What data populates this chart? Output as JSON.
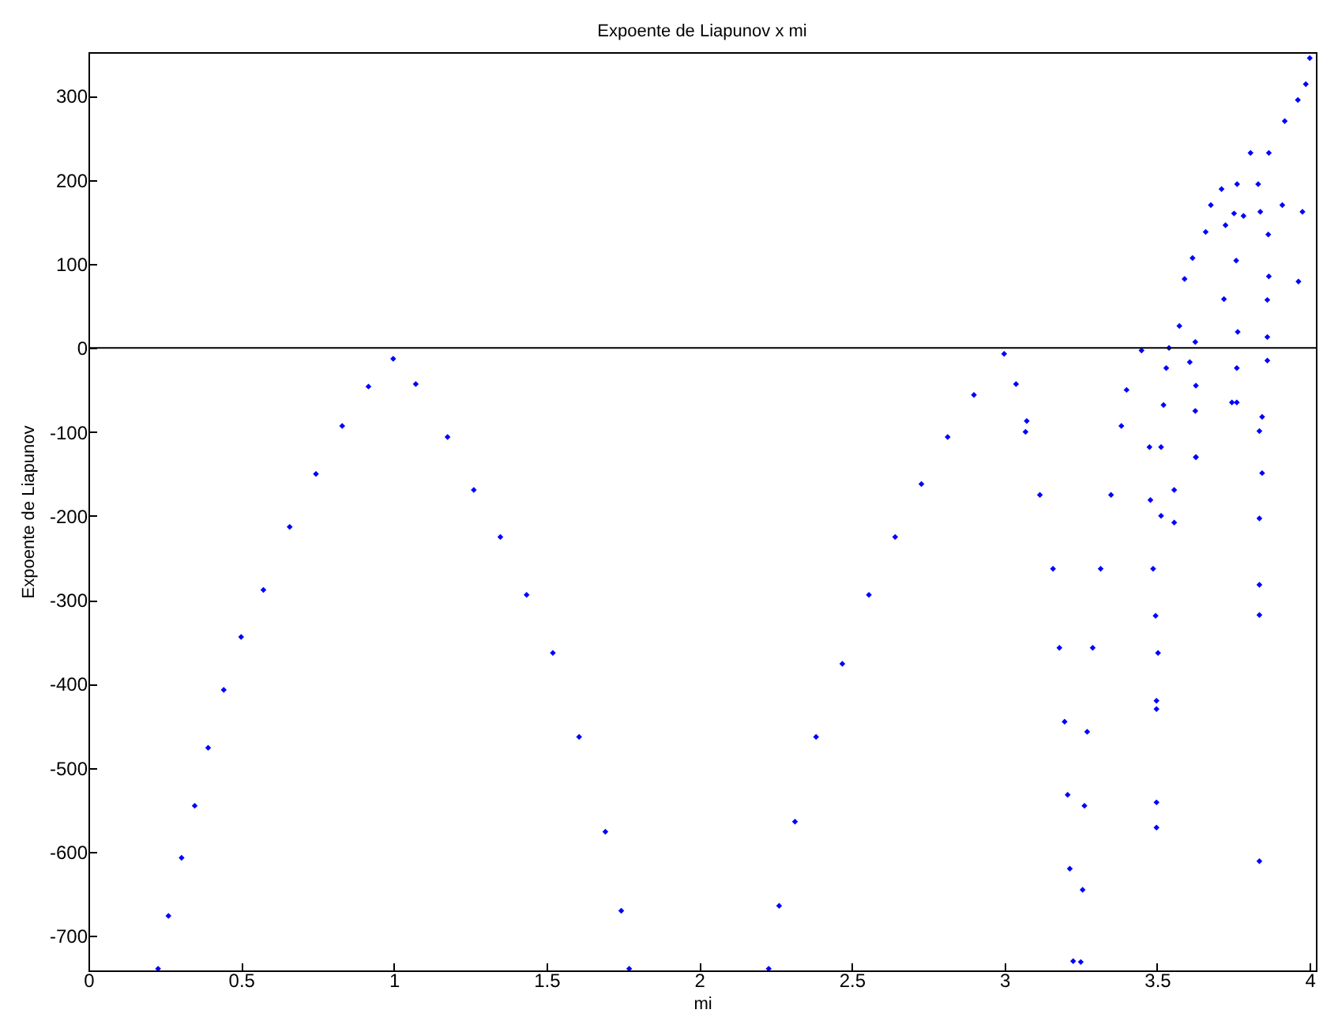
{
  "chart_data": {
    "type": "scatter",
    "title": "Expoente de Liapunov x mi",
    "xlabel": "mi",
    "ylabel": "Expoente de Liapunov",
    "marker": "diamond",
    "xlim": [
      0,
      4.02
    ],
    "ylim": [
      -741,
      352
    ],
    "xticks": [
      0,
      0.5,
      1,
      1.5,
      2,
      2.5,
      3,
      3.5,
      4
    ],
    "yticks": [
      -700,
      -600,
      -500,
      -400,
      -300,
      -200,
      -100,
      0,
      100,
      200,
      300
    ],
    "ref_lines": [
      {
        "axis": "y",
        "value": 0,
        "color": "#000000"
      }
    ],
    "series": [
      {
        "color": "#0000ff",
        "x": [
          0.228,
          0.262,
          0.305,
          0.348,
          0.392,
          0.443,
          0.5,
          0.573,
          0.659,
          0.745,
          0.831,
          0.917,
          0.998,
          1.072,
          1.176,
          1.262,
          1.349,
          1.435,
          1.521,
          1.607,
          1.693,
          1.745,
          1.771,
          2.228,
          2.262,
          2.314,
          2.383,
          2.469,
          2.556,
          2.642,
          2.728,
          2.814,
          2.9,
          2.999,
          3.038,
          3.069,
          3.073,
          3.116,
          3.159,
          3.18,
          3.197,
          3.207,
          3.214,
          3.225,
          3.25,
          3.256,
          3.262,
          3.271,
          3.289,
          3.315,
          3.349,
          3.383,
          3.4,
          3.449,
          3.475,
          3.478,
          3.487,
          3.495,
          3.503,
          3.498,
          3.498,
          3.498,
          3.498,
          3.513,
          3.513,
          3.521,
          3.53,
          3.539,
          3.573,
          3.59,
          3.616,
          3.659,
          3.676,
          3.711,
          3.762,
          3.806,
          3.831,
          3.866,
          3.918,
          3.961,
          3.987,
          4.0,
          3.752,
          3.783,
          3.838,
          3.864,
          3.91,
          3.976,
          3.963,
          3.724,
          3.759,
          3.719,
          3.764,
          3.761,
          3.761,
          3.866,
          3.861,
          3.861,
          3.861,
          3.625,
          3.607,
          3.627,
          3.625,
          3.627,
          3.556,
          3.556,
          3.627,
          3.745,
          3.835,
          3.835,
          3.835,
          3.835,
          3.844,
          3.844,
          3.835
        ],
        "values": [
          -739,
          -676,
          -607,
          -545,
          -476,
          -407,
          -344,
          -288,
          -213,
          -150,
          -93,
          -46,
          -13,
          -43,
          -106,
          -169,
          -225,
          -294,
          -363,
          -463,
          -576,
          -670,
          -739,
          -739,
          -664,
          -564,
          -463,
          -376,
          -294,
          -225,
          -162,
          -106,
          -56,
          -7,
          -43,
          -100,
          -87,
          -175,
          -263,
          -357,
          -445,
          -532,
          -620,
          -730,
          -731,
          -645,
          -545,
          -457,
          -357,
          -263,
          -175,
          -93,
          -50,
          -3,
          -118,
          -181,
          -263,
          -319,
          -363,
          -420,
          -430,
          -541,
          -571,
          -200,
          -118,
          -68,
          -24,
          0,
          26,
          82,
          107,
          138,
          170,
          189,
          195,
          232,
          195,
          232,
          270,
          295,
          314,
          345,
          160,
          157,
          162,
          135,
          170,
          162,
          79,
          146,
          104,
          58,
          19,
          -24,
          -65,
          85,
          57,
          13,
          -15,
          7,
          -17,
          -45,
          -75,
          -130,
          -169,
          -208,
          -130,
          -65,
          -203,
          -282,
          -318,
          -611,
          -149,
          -82,
          -99
        ]
      }
    ]
  }
}
